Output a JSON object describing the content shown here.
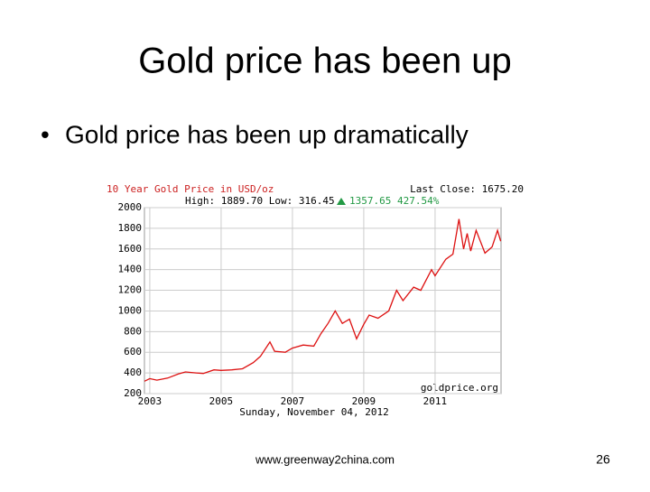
{
  "slide": {
    "title": "Gold price has been up",
    "bullets": [
      "Gold price has been up dramatically"
    ],
    "footer": "www.greenway2china.com",
    "page_number": 26
  },
  "chart_data": {
    "type": "line",
    "title": "10 Year Gold Price in USD/oz",
    "xlabel": "Sunday, November 04, 2012",
    "annotations": [
      "Last Close: 1675.20",
      "High: 1889.70 Low: 316.45",
      "1357.65 427.54%",
      "goldprice.org"
    ],
    "x": [
      2002.85,
      2003.0,
      2003.2,
      2003.5,
      2003.8,
      2004.0,
      2004.3,
      2004.5,
      2004.8,
      2005.0,
      2005.3,
      2005.6,
      2005.9,
      2006.1,
      2006.37,
      2006.5,
      2006.8,
      2007.0,
      2007.3,
      2007.6,
      2007.8,
      2008.0,
      2008.2,
      2008.4,
      2008.6,
      2008.8,
      2009.0,
      2009.15,
      2009.4,
      2009.7,
      2009.92,
      2010.1,
      2010.4,
      2010.6,
      2010.9,
      2011.0,
      2011.3,
      2011.5,
      2011.67,
      2011.8,
      2011.9,
      2012.0,
      2012.15,
      2012.4,
      2012.6,
      2012.75,
      2012.84
    ],
    "values": [
      320,
      345,
      330,
      350,
      390,
      410,
      400,
      395,
      430,
      425,
      430,
      440,
      500,
      560,
      700,
      610,
      600,
      640,
      670,
      660,
      780,
      880,
      1000,
      880,
      920,
      730,
      870,
      960,
      930,
      1000,
      1200,
      1100,
      1230,
      1200,
      1400,
      1340,
      1500,
      1550,
      1889.7,
      1600,
      1750,
      1580,
      1780,
      1560,
      1620,
      1780,
      1675.2
    ],
    "color": "#dd1111",
    "xlim": [
      2002.85,
      2012.85
    ],
    "xticks": [
      2003,
      2005,
      2007,
      2009,
      2011
    ],
    "ylim": [
      200,
      2000
    ],
    "yticks": [
      200,
      400,
      600,
      800,
      1000,
      1200,
      1400,
      1600,
      1800,
      2000
    ],
    "grid": true
  }
}
